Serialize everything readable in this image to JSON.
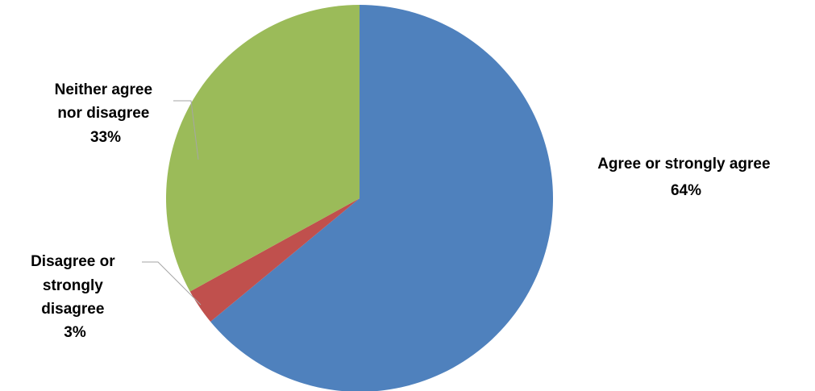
{
  "chart_data": {
    "type": "pie",
    "slices": [
      {
        "name": "Agree or strongly agree",
        "label_lines": [
          "Agree or strongly agree",
          "64%"
        ],
        "value": 64,
        "color": "#4f81bd"
      },
      {
        "name": "Disagree or strongly disagree",
        "label_lines": [
          "Disagree or",
          "strongly",
          "disagree",
          "3%"
        ],
        "value": 3,
        "color": "#c0504d"
      },
      {
        "name": "Neither agree nor disagree",
        "label_lines": [
          "Neither agree",
          "nor disagree",
          "33%"
        ],
        "value": 33,
        "color": "#9bbb59"
      }
    ],
    "start_angle": "12 o'clock",
    "direction": "clockwise",
    "legend": "none"
  }
}
